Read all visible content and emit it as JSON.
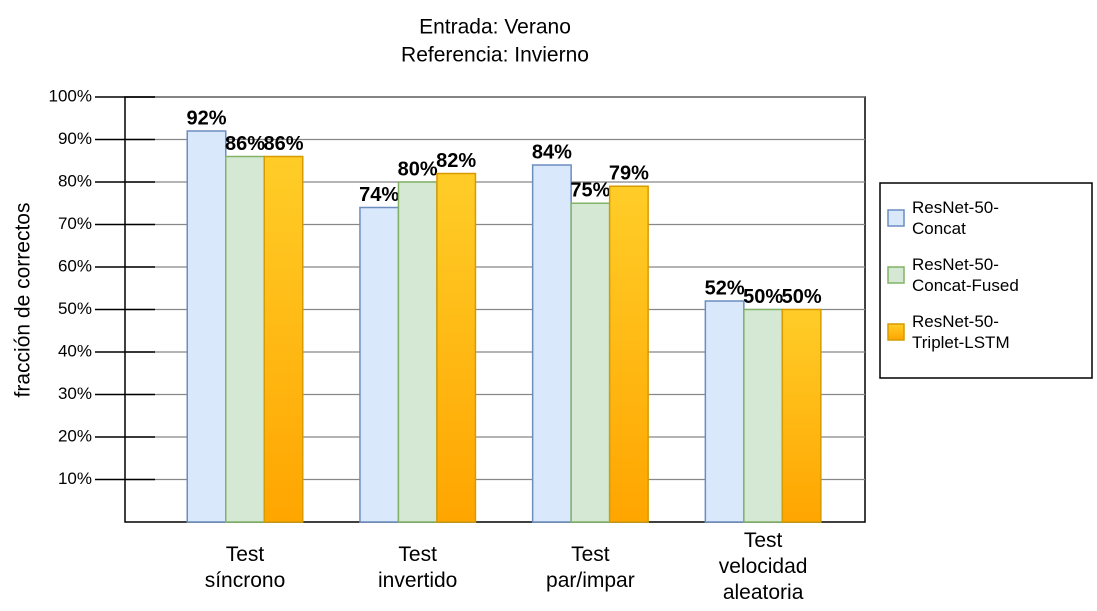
{
  "chart_data": {
    "type": "bar",
    "title": [
      "Entrada: Verano",
      "Referencia: Invierno"
    ],
    "y_label": "fracción de correctos",
    "categories": [
      "Test\nsíncrono",
      "Test\ninvertido",
      "Test\npar/impar",
      "Test\nvelocidad\naleatoria"
    ],
    "series": [
      {
        "name": "ResNet-50-Concat",
        "color": "#dae8fc",
        "edge": "#6c8ebf",
        "values": [
          92,
          74,
          84,
          52
        ],
        "value_labels": [
          "92%",
          "74%",
          "84%",
          "52%"
        ]
      },
      {
        "name": "ResNet-50-Concat-Fused",
        "color": "#d5e8d4",
        "edge": "#82b366",
        "values": [
          86,
          80,
          75,
          50
        ],
        "value_labels": [
          "86%",
          "80%",
          "75%",
          "50%"
        ]
      },
      {
        "name": "ResNet-50-Triplet-LSTM",
        "color": "#ffcd28",
        "color2": "#ffa500",
        "edge": "#d79b00",
        "values": [
          86,
          82,
          79,
          50
        ],
        "value_labels": [
          "86%",
          "82%",
          "79%",
          "50%"
        ]
      }
    ],
    "ylim": [
      0,
      100
    ],
    "yticks": [
      {
        "value": 10,
        "label": "10%"
      },
      {
        "value": 20,
        "label": "20%"
      },
      {
        "value": 30,
        "label": "30%"
      },
      {
        "value": 40,
        "label": "40%"
      },
      {
        "value": 50,
        "label": "50%"
      },
      {
        "value": 60,
        "label": "60%"
      },
      {
        "value": 70,
        "label": "70%"
      },
      {
        "value": 80,
        "label": "80%"
      },
      {
        "value": 90,
        "label": "90%"
      },
      {
        "value": 100,
        "label": "100%"
      }
    ],
    "grid": true,
    "legend": "right"
  }
}
